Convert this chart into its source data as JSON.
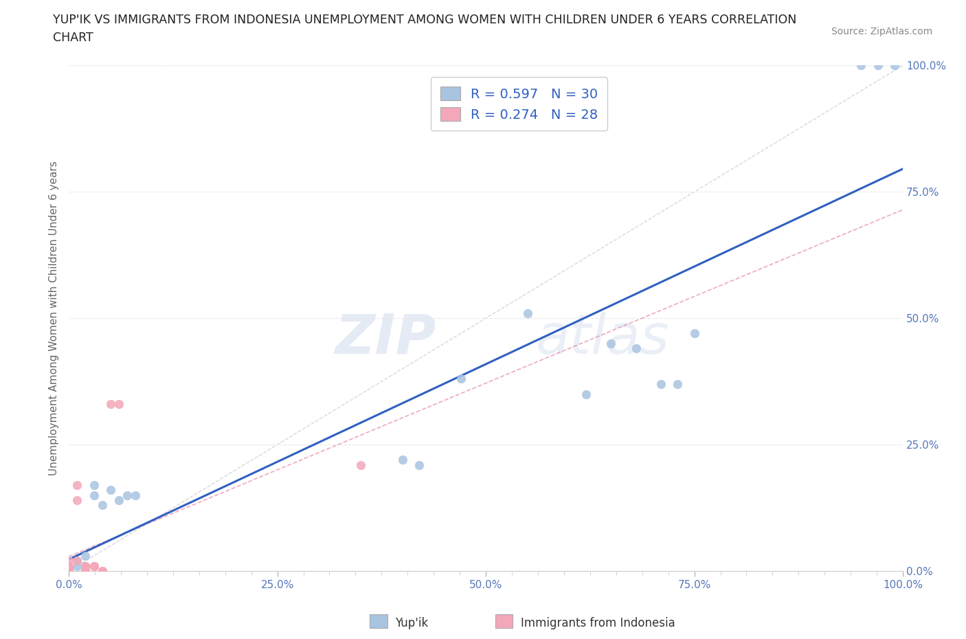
{
  "title_line1": "YUP'IK VS IMMIGRANTS FROM INDONESIA UNEMPLOYMENT AMONG WOMEN WITH CHILDREN UNDER 6 YEARS CORRELATION",
  "title_line2": "CHART",
  "source": "Source: ZipAtlas.com",
  "ylabel": "Unemployment Among Women with Children Under 6 years",
  "xlim": [
    0,
    1
  ],
  "ylim": [
    0,
    1
  ],
  "xtick_labels": [
    "0.0%",
    "",
    "",
    "",
    "",
    "",
    "",
    "",
    "25.0%",
    "",
    "",
    "",
    "",
    "",
    "",
    "",
    "50.0%",
    "",
    "",
    "",
    "",
    "",
    "",
    "",
    "75.0%",
    "",
    "",
    "",
    "",
    "",
    "",
    "",
    "100.0%"
  ],
  "xtick_vals": [
    0,
    0.03125,
    0.0625,
    0.09375,
    0.125,
    0.15625,
    0.1875,
    0.21875,
    0.25,
    0.28125,
    0.3125,
    0.34375,
    0.375,
    0.40625,
    0.4375,
    0.46875,
    0.5,
    0.53125,
    0.5625,
    0.59375,
    0.625,
    0.65625,
    0.6875,
    0.71875,
    0.75,
    0.78125,
    0.8125,
    0.84375,
    0.875,
    0.90625,
    0.9375,
    0.96875,
    1.0
  ],
  "ytick_labels_right": [
    "0.0%",
    "25.0%",
    "50.0%",
    "75.0%",
    "100.0%"
  ],
  "ytick_vals": [
    0,
    0.25,
    0.5,
    0.75,
    1.0
  ],
  "yup_ik_x": [
    0.0,
    0.0,
    0.0,
    0.0,
    0.01,
    0.01,
    0.02,
    0.02,
    0.02,
    0.02,
    0.03,
    0.03,
    0.04,
    0.05,
    0.06,
    0.07,
    0.08,
    0.4,
    0.42,
    0.47,
    0.55,
    0.62,
    0.65,
    0.68,
    0.71,
    0.73,
    0.75,
    0.95,
    0.97,
    0.99
  ],
  "yup_ik_y": [
    0.0,
    0.0,
    0.01,
    0.01,
    0.01,
    0.02,
    0.0,
    0.0,
    0.01,
    0.03,
    0.15,
    0.17,
    0.13,
    0.16,
    0.14,
    0.15,
    0.15,
    0.22,
    0.21,
    0.38,
    0.51,
    0.35,
    0.45,
    0.44,
    0.37,
    0.37,
    0.47,
    1.0,
    1.0,
    1.0
  ],
  "indonesia_x": [
    0.0,
    0.0,
    0.0,
    0.0,
    0.0,
    0.0,
    0.0,
    0.0,
    0.0,
    0.0,
    0.0,
    0.0,
    0.0,
    0.01,
    0.01,
    0.01,
    0.02,
    0.02,
    0.02,
    0.02,
    0.02,
    0.03,
    0.03,
    0.04,
    0.04,
    0.05,
    0.06,
    0.35
  ],
  "indonesia_y": [
    0.0,
    0.0,
    0.0,
    0.0,
    0.0,
    0.0,
    0.0,
    0.0,
    0.01,
    0.01,
    0.01,
    0.01,
    0.02,
    0.02,
    0.14,
    0.17,
    0.0,
    0.0,
    0.0,
    0.01,
    0.01,
    0.01,
    0.01,
    0.0,
    0.0,
    0.33,
    0.33,
    0.21
  ],
  "yupik_color": "#a8c4e0",
  "indonesia_color": "#f4a7b9",
  "trend_color_yupik": "#3060c0",
  "trend_color_indonesia": "#e07090",
  "ref_line_color": "#c8c8c8",
  "R_yupik": 0.597,
  "N_yupik": 30,
  "R_indonesia": 0.274,
  "N_indonesia": 28,
  "watermark_zip": "ZIP",
  "watermark_atlas": "atlas",
  "background_color": "#ffffff",
  "grid_color": "#e8e8e8"
}
